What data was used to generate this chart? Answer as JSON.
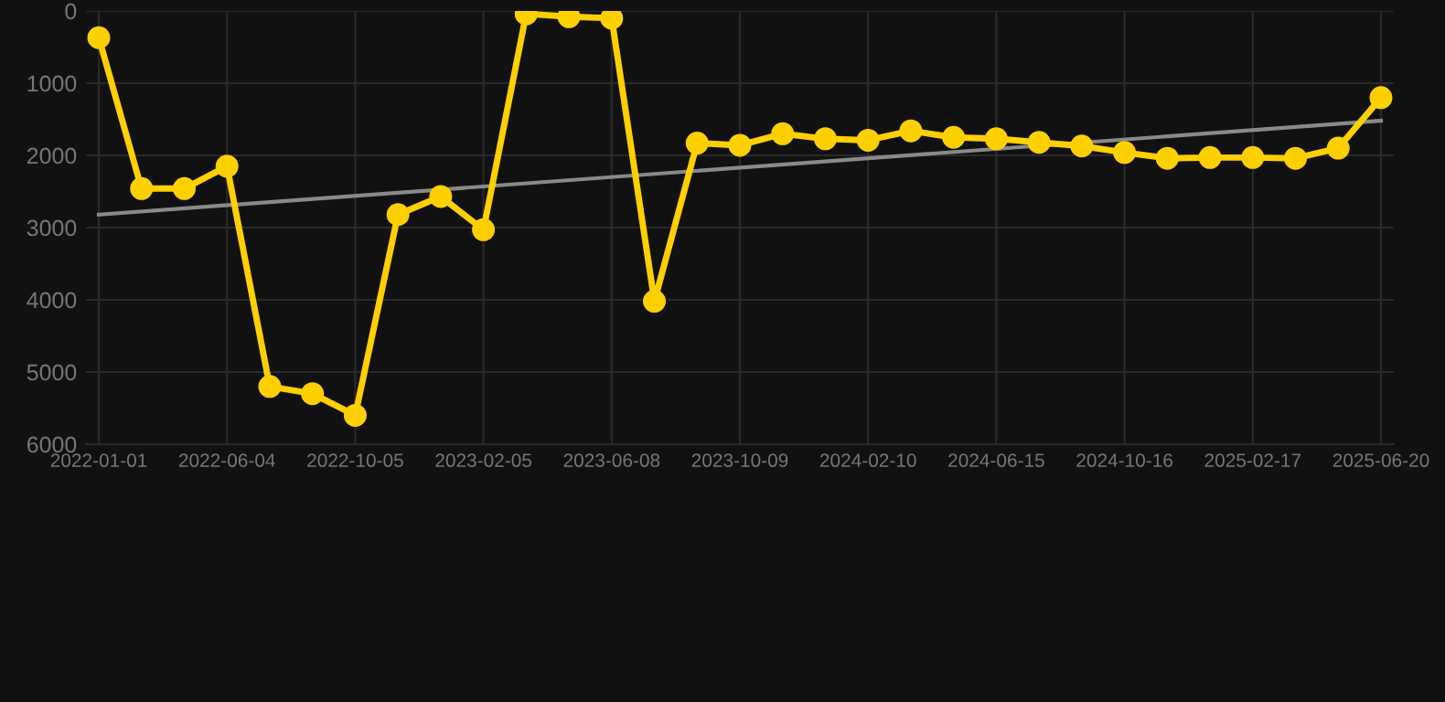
{
  "chart_data": {
    "type": "line",
    "categories": [
      "2022-01-01",
      null,
      null,
      "2022-06-04",
      null,
      null,
      "2022-10-05",
      null,
      null,
      "2023-02-05",
      null,
      null,
      "2023-06-08",
      null,
      null,
      "2023-10-09",
      null,
      null,
      "2024-02-10",
      null,
      null,
      "2024-06-15",
      null,
      null,
      "2024-10-16",
      null,
      null,
      "2025-02-17",
      null,
      null,
      "2025-06-20"
    ],
    "series": [
      {
        "color": "#ffd000",
        "marker": "circle",
        "values": [
          370,
          2460,
          2460,
          2150,
          5200,
          5300,
          5600,
          2820,
          2570,
          3030,
          40,
          80,
          100,
          4020,
          1830,
          1860,
          1700,
          1770,
          1790,
          1660,
          1750,
          1770,
          1820,
          1870,
          1960,
          2040,
          2030,
          2030,
          2040,
          1900,
          1200
        ]
      },
      {
        "type": "line",
        "color": "#8a8a8a",
        "marker": "none",
        "values": [
          2820,
          null,
          null,
          null,
          null,
          null,
          null,
          null,
          null,
          null,
          null,
          null,
          null,
          null,
          null,
          null,
          null,
          null,
          null,
          null,
          null,
          null,
          null,
          null,
          null,
          null,
          null,
          null,
          null,
          null,
          1520
        ]
      }
    ],
    "ylim": [
      6000,
      0
    ],
    "yticks": [
      0,
      1000,
      2000,
      3000,
      4000,
      5000,
      6000
    ],
    "grid": true,
    "legend": false
  }
}
